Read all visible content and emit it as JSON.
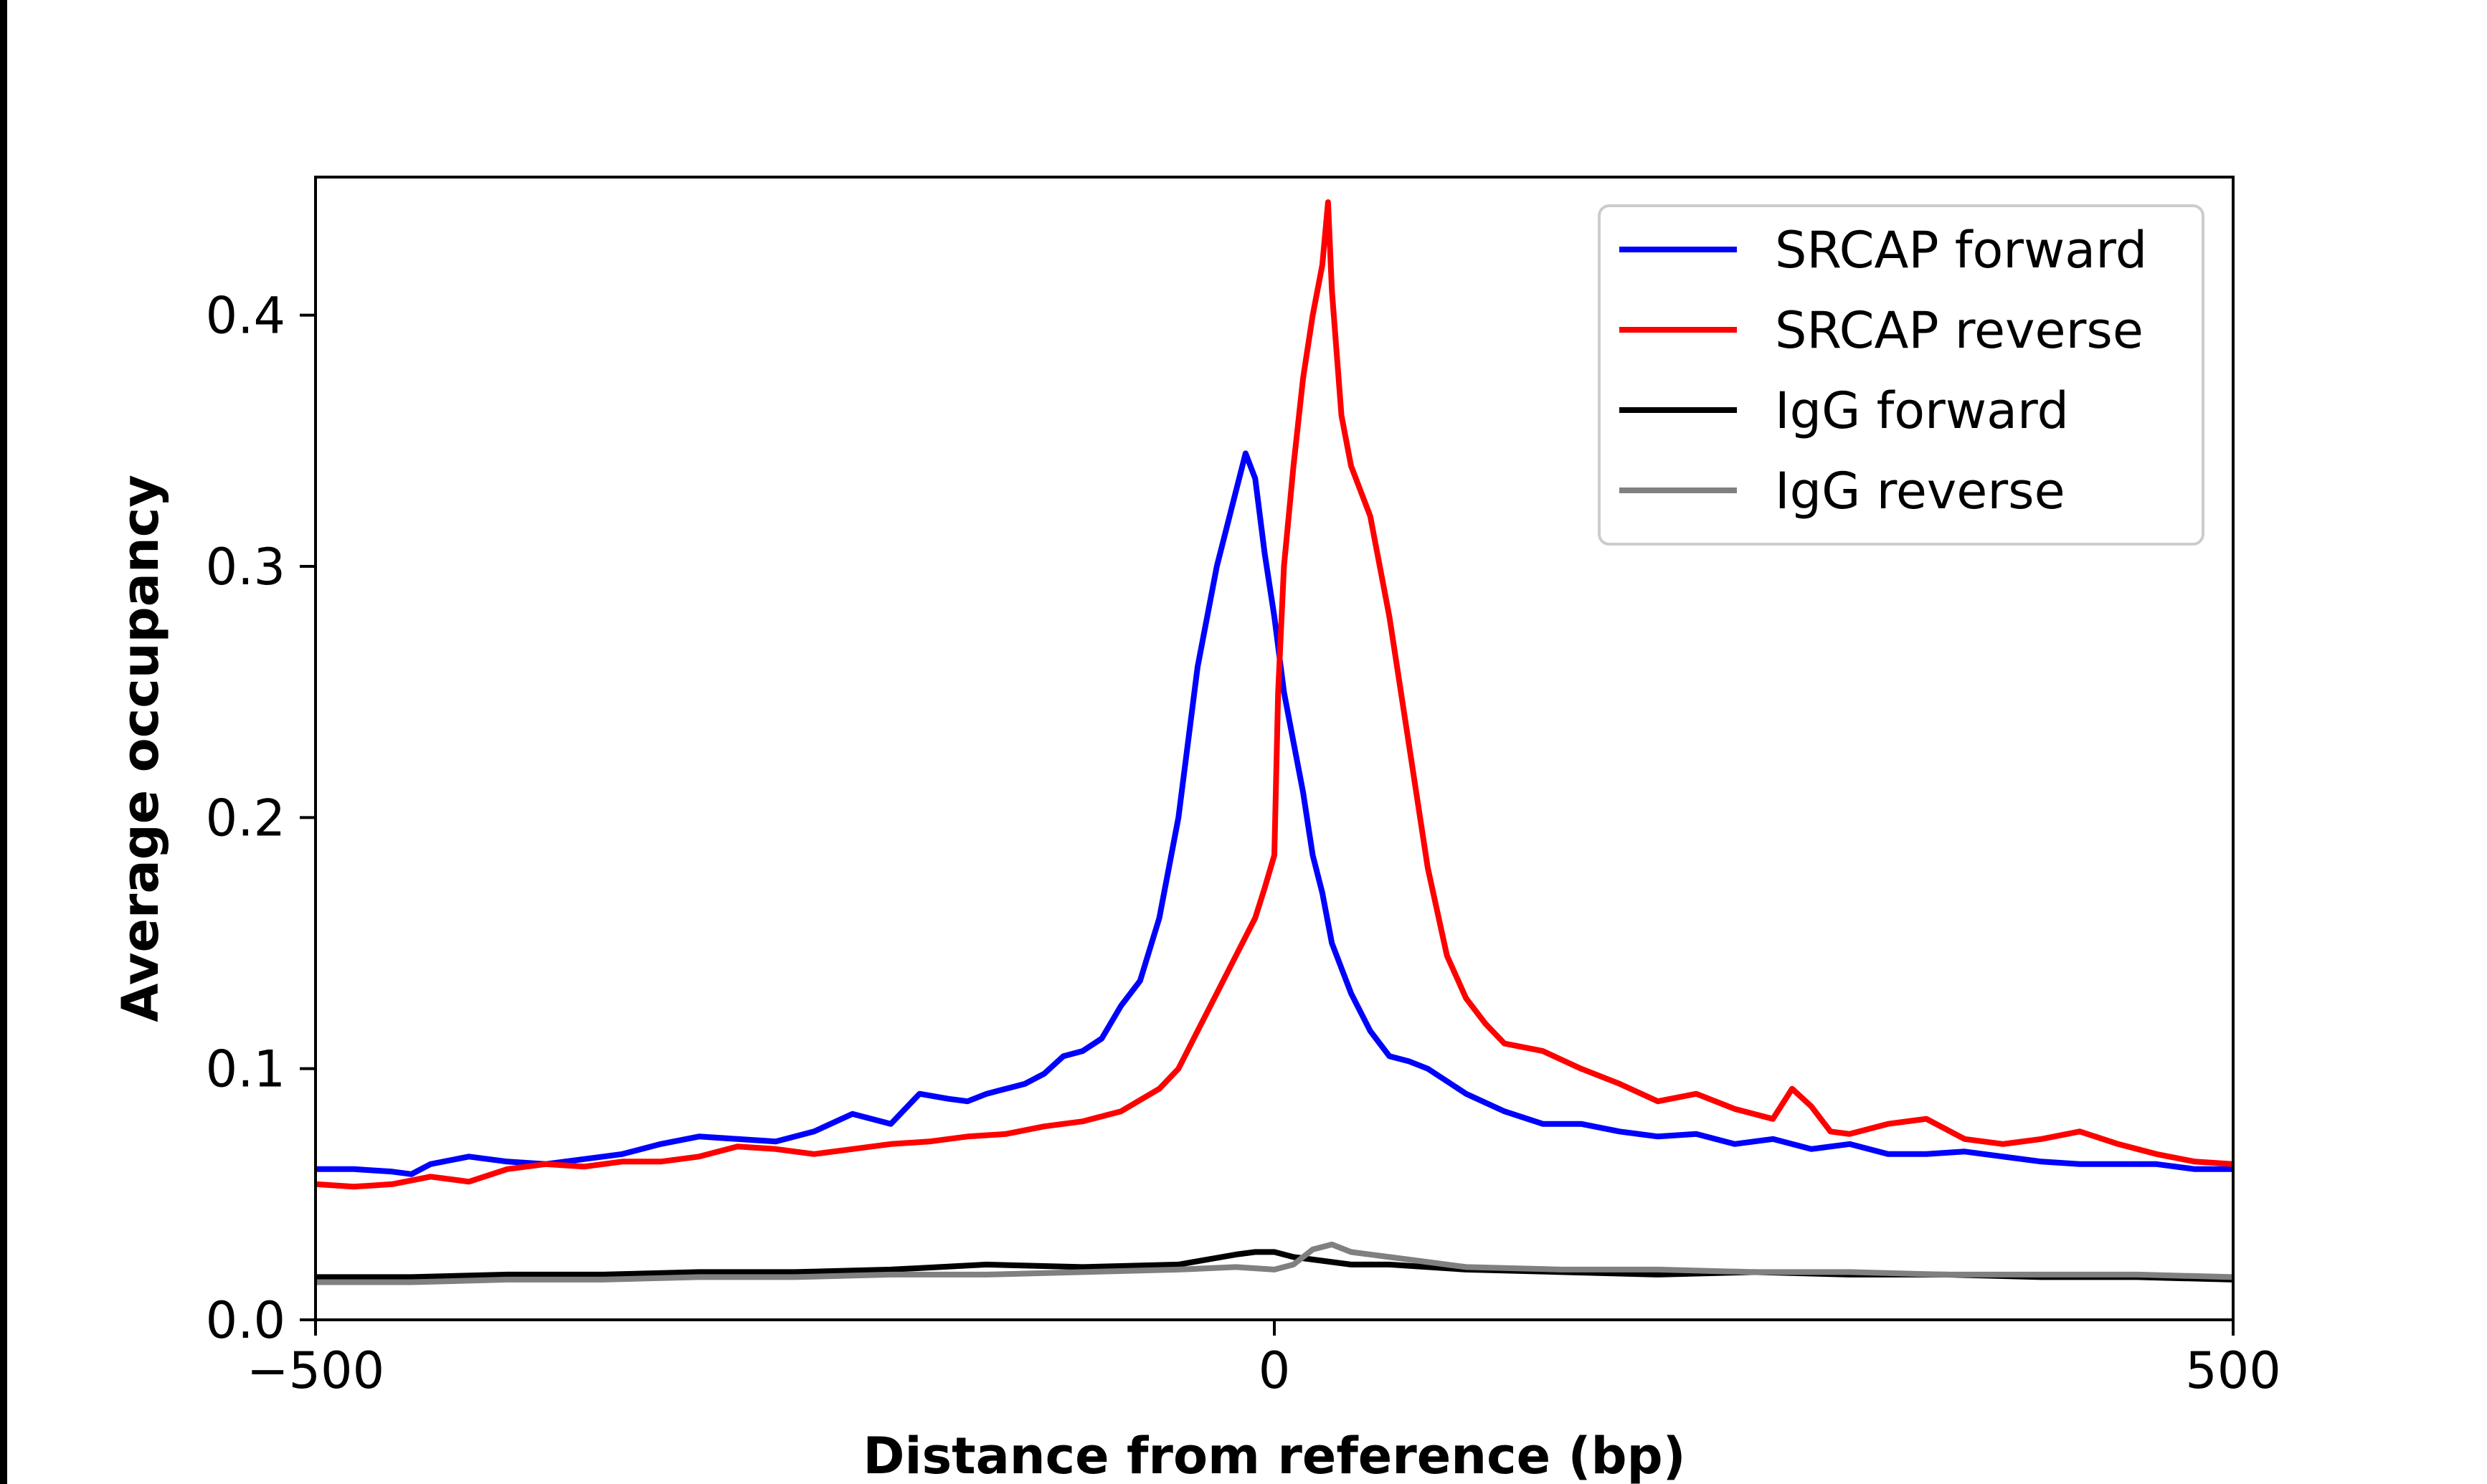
{
  "chart_data": {
    "type": "line",
    "xlabel": "Distance from reference (bp)",
    "ylabel": "Average occupancy",
    "xlim": [
      -500,
      500
    ],
    "ylim": [
      0,
      0.455
    ],
    "xticks": [
      -500,
      0,
      500
    ],
    "xtick_labels": [
      "−500",
      "0",
      "500"
    ],
    "yticks": [
      0.0,
      0.1,
      0.2,
      0.3,
      0.4
    ],
    "ytick_labels": [
      "0.0",
      "0.1",
      "0.2",
      "0.3",
      "0.4"
    ],
    "grid": false,
    "legend_position": "top-right",
    "series": [
      {
        "name": "SRCAP forward",
        "color": "#0000ff",
        "points": [
          [
            -500,
            0.06
          ],
          [
            -480,
            0.06
          ],
          [
            -460,
            0.059
          ],
          [
            -450,
            0.058
          ],
          [
            -440,
            0.062
          ],
          [
            -420,
            0.065
          ],
          [
            -400,
            0.063
          ],
          [
            -380,
            0.062
          ],
          [
            -360,
            0.064
          ],
          [
            -340,
            0.066
          ],
          [
            -320,
            0.07
          ],
          [
            -300,
            0.073
          ],
          [
            -280,
            0.072
          ],
          [
            -260,
            0.071
          ],
          [
            -240,
            0.075
          ],
          [
            -220,
            0.082
          ],
          [
            -200,
            0.078
          ],
          [
            -185,
            0.09
          ],
          [
            -170,
            0.088
          ],
          [
            -160,
            0.087
          ],
          [
            -150,
            0.09
          ],
          [
            -140,
            0.092
          ],
          [
            -130,
            0.094
          ],
          [
            -120,
            0.098
          ],
          [
            -110,
            0.105
          ],
          [
            -100,
            0.107
          ],
          [
            -90,
            0.112
          ],
          [
            -80,
            0.125
          ],
          [
            -70,
            0.135
          ],
          [
            -60,
            0.16
          ],
          [
            -50,
            0.2
          ],
          [
            -40,
            0.26
          ],
          [
            -30,
            0.3
          ],
          [
            -20,
            0.33
          ],
          [
            -15,
            0.345
          ],
          [
            -10,
            0.335
          ],
          [
            -5,
            0.305
          ],
          [
            0,
            0.28
          ],
          [
            5,
            0.25
          ],
          [
            10,
            0.23
          ],
          [
            15,
            0.21
          ],
          [
            20,
            0.185
          ],
          [
            25,
            0.17
          ],
          [
            30,
            0.15
          ],
          [
            40,
            0.13
          ],
          [
            50,
            0.115
          ],
          [
            60,
            0.105
          ],
          [
            70,
            0.103
          ],
          [
            80,
            0.1
          ],
          [
            90,
            0.095
          ],
          [
            100,
            0.09
          ],
          [
            120,
            0.083
          ],
          [
            140,
            0.078
          ],
          [
            160,
            0.078
          ],
          [
            180,
            0.075
          ],
          [
            200,
            0.073
          ],
          [
            220,
            0.074
          ],
          [
            240,
            0.07
          ],
          [
            260,
            0.072
          ],
          [
            280,
            0.068
          ],
          [
            300,
            0.07
          ],
          [
            320,
            0.066
          ],
          [
            340,
            0.066
          ],
          [
            360,
            0.067
          ],
          [
            380,
            0.065
          ],
          [
            400,
            0.063
          ],
          [
            420,
            0.062
          ],
          [
            440,
            0.062
          ],
          [
            460,
            0.062
          ],
          [
            480,
            0.06
          ],
          [
            500,
            0.06
          ]
        ]
      },
      {
        "name": "SRCAP reverse",
        "color": "#ff0000",
        "points": [
          [
            -500,
            0.054
          ],
          [
            -480,
            0.053
          ],
          [
            -460,
            0.054
          ],
          [
            -440,
            0.057
          ],
          [
            -420,
            0.055
          ],
          [
            -400,
            0.06
          ],
          [
            -380,
            0.062
          ],
          [
            -360,
            0.061
          ],
          [
            -340,
            0.063
          ],
          [
            -320,
            0.063
          ],
          [
            -300,
            0.065
          ],
          [
            -280,
            0.069
          ],
          [
            -260,
            0.068
          ],
          [
            -240,
            0.066
          ],
          [
            -220,
            0.068
          ],
          [
            -200,
            0.07
          ],
          [
            -180,
            0.071
          ],
          [
            -160,
            0.073
          ],
          [
            -140,
            0.074
          ],
          [
            -120,
            0.077
          ],
          [
            -100,
            0.079
          ],
          [
            -80,
            0.083
          ],
          [
            -60,
            0.092
          ],
          [
            -50,
            0.1
          ],
          [
            -40,
            0.115
          ],
          [
            -30,
            0.13
          ],
          [
            -20,
            0.145
          ],
          [
            -10,
            0.16
          ],
          [
            -5,
            0.172
          ],
          [
            0,
            0.185
          ],
          [
            2,
            0.25
          ],
          [
            5,
            0.3
          ],
          [
            10,
            0.34
          ],
          [
            15,
            0.375
          ],
          [
            20,
            0.4
          ],
          [
            25,
            0.42
          ],
          [
            28,
            0.445
          ],
          [
            30,
            0.41
          ],
          [
            35,
            0.36
          ],
          [
            40,
            0.34
          ],
          [
            50,
            0.32
          ],
          [
            60,
            0.28
          ],
          [
            70,
            0.23
          ],
          [
            80,
            0.18
          ],
          [
            90,
            0.145
          ],
          [
            100,
            0.128
          ],
          [
            110,
            0.118
          ],
          [
            120,
            0.11
          ],
          [
            140,
            0.107
          ],
          [
            160,
            0.1
          ],
          [
            180,
            0.094
          ],
          [
            200,
            0.087
          ],
          [
            220,
            0.09
          ],
          [
            240,
            0.084
          ],
          [
            260,
            0.08
          ],
          [
            270,
            0.092
          ],
          [
            280,
            0.085
          ],
          [
            290,
            0.075
          ],
          [
            300,
            0.074
          ],
          [
            320,
            0.078
          ],
          [
            340,
            0.08
          ],
          [
            360,
            0.072
          ],
          [
            380,
            0.07
          ],
          [
            400,
            0.072
          ],
          [
            420,
            0.075
          ],
          [
            440,
            0.07
          ],
          [
            460,
            0.066
          ],
          [
            480,
            0.063
          ],
          [
            500,
            0.062
          ]
        ]
      },
      {
        "name": "IgG forward",
        "color": "#000000",
        "points": [
          [
            -500,
            0.017
          ],
          [
            -450,
            0.017
          ],
          [
            -400,
            0.018
          ],
          [
            -350,
            0.018
          ],
          [
            -300,
            0.019
          ],
          [
            -250,
            0.019
          ],
          [
            -200,
            0.02
          ],
          [
            -150,
            0.022
          ],
          [
            -100,
            0.021
          ],
          [
            -50,
            0.022
          ],
          [
            -20,
            0.026
          ],
          [
            -10,
            0.027
          ],
          [
            0,
            0.027
          ],
          [
            10,
            0.025
          ],
          [
            20,
            0.024
          ],
          [
            40,
            0.022
          ],
          [
            60,
            0.022
          ],
          [
            100,
            0.02
          ],
          [
            150,
            0.019
          ],
          [
            200,
            0.018
          ],
          [
            250,
            0.019
          ],
          [
            300,
            0.018
          ],
          [
            350,
            0.018
          ],
          [
            400,
            0.017
          ],
          [
            450,
            0.017
          ],
          [
            500,
            0.016
          ]
        ]
      },
      {
        "name": "IgG reverse",
        "color": "#808080",
        "points": [
          [
            -500,
            0.015
          ],
          [
            -450,
            0.015
          ],
          [
            -400,
            0.016
          ],
          [
            -350,
            0.016
          ],
          [
            -300,
            0.017
          ],
          [
            -250,
            0.017
          ],
          [
            -200,
            0.018
          ],
          [
            -150,
            0.018
          ],
          [
            -100,
            0.019
          ],
          [
            -50,
            0.02
          ],
          [
            -20,
            0.021
          ],
          [
            0,
            0.02
          ],
          [
            10,
            0.022
          ],
          [
            20,
            0.028
          ],
          [
            30,
            0.03
          ],
          [
            40,
            0.027
          ],
          [
            60,
            0.025
          ],
          [
            80,
            0.023
          ],
          [
            100,
            0.021
          ],
          [
            150,
            0.02
          ],
          [
            200,
            0.02
          ],
          [
            250,
            0.019
          ],
          [
            300,
            0.019
          ],
          [
            350,
            0.018
          ],
          [
            400,
            0.018
          ],
          [
            450,
            0.018
          ],
          [
            500,
            0.017
          ]
        ]
      }
    ]
  }
}
